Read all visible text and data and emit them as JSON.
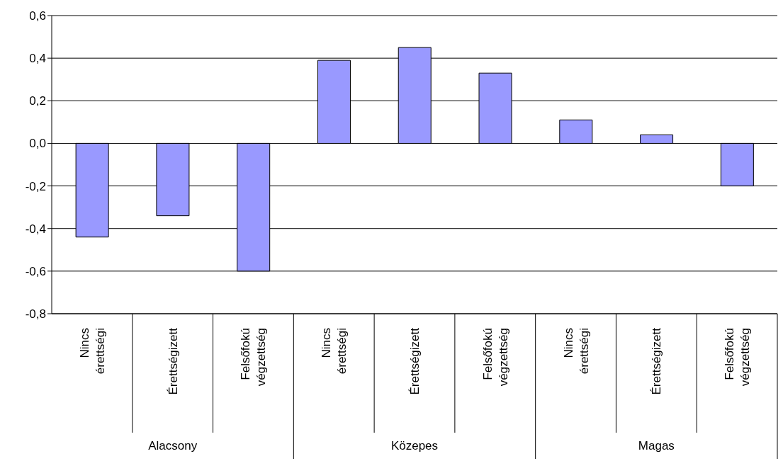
{
  "chart_data": {
    "type": "bar",
    "categories": [
      "Nincs érettségi",
      "Érettségizett",
      "Felsőfokú végzettség",
      "Nincs érettségi",
      "Érettségizett",
      "Felsőfokú végzettség",
      "Nincs érettségi",
      "Érettségizett",
      "Felsőfokú végzettség"
    ],
    "values": [
      -0.44,
      -0.34,
      -0.6,
      0.39,
      0.45,
      0.33,
      0.11,
      0.04,
      -0.2
    ],
    "color": "#9999ff",
    "ylim": [
      -0.8,
      0.6
    ],
    "yticks": [
      {
        "value": -0.8,
        "label": "-0,8"
      },
      {
        "value": -0.6,
        "label": "-0,6"
      },
      {
        "value": -0.4,
        "label": "-0,4"
      },
      {
        "value": -0.2,
        "label": "-0,2"
      },
      {
        "value": 0,
        "label": "0,0"
      },
      {
        "value": 0.2,
        "label": "0,2"
      },
      {
        "value": 0.4,
        "label": "0,4"
      },
      {
        "value": 0.6,
        "label": "0,6"
      }
    ],
    "grid": "y",
    "annotations": [
      "Alacsony",
      "Közepes",
      "Magas"
    ]
  }
}
